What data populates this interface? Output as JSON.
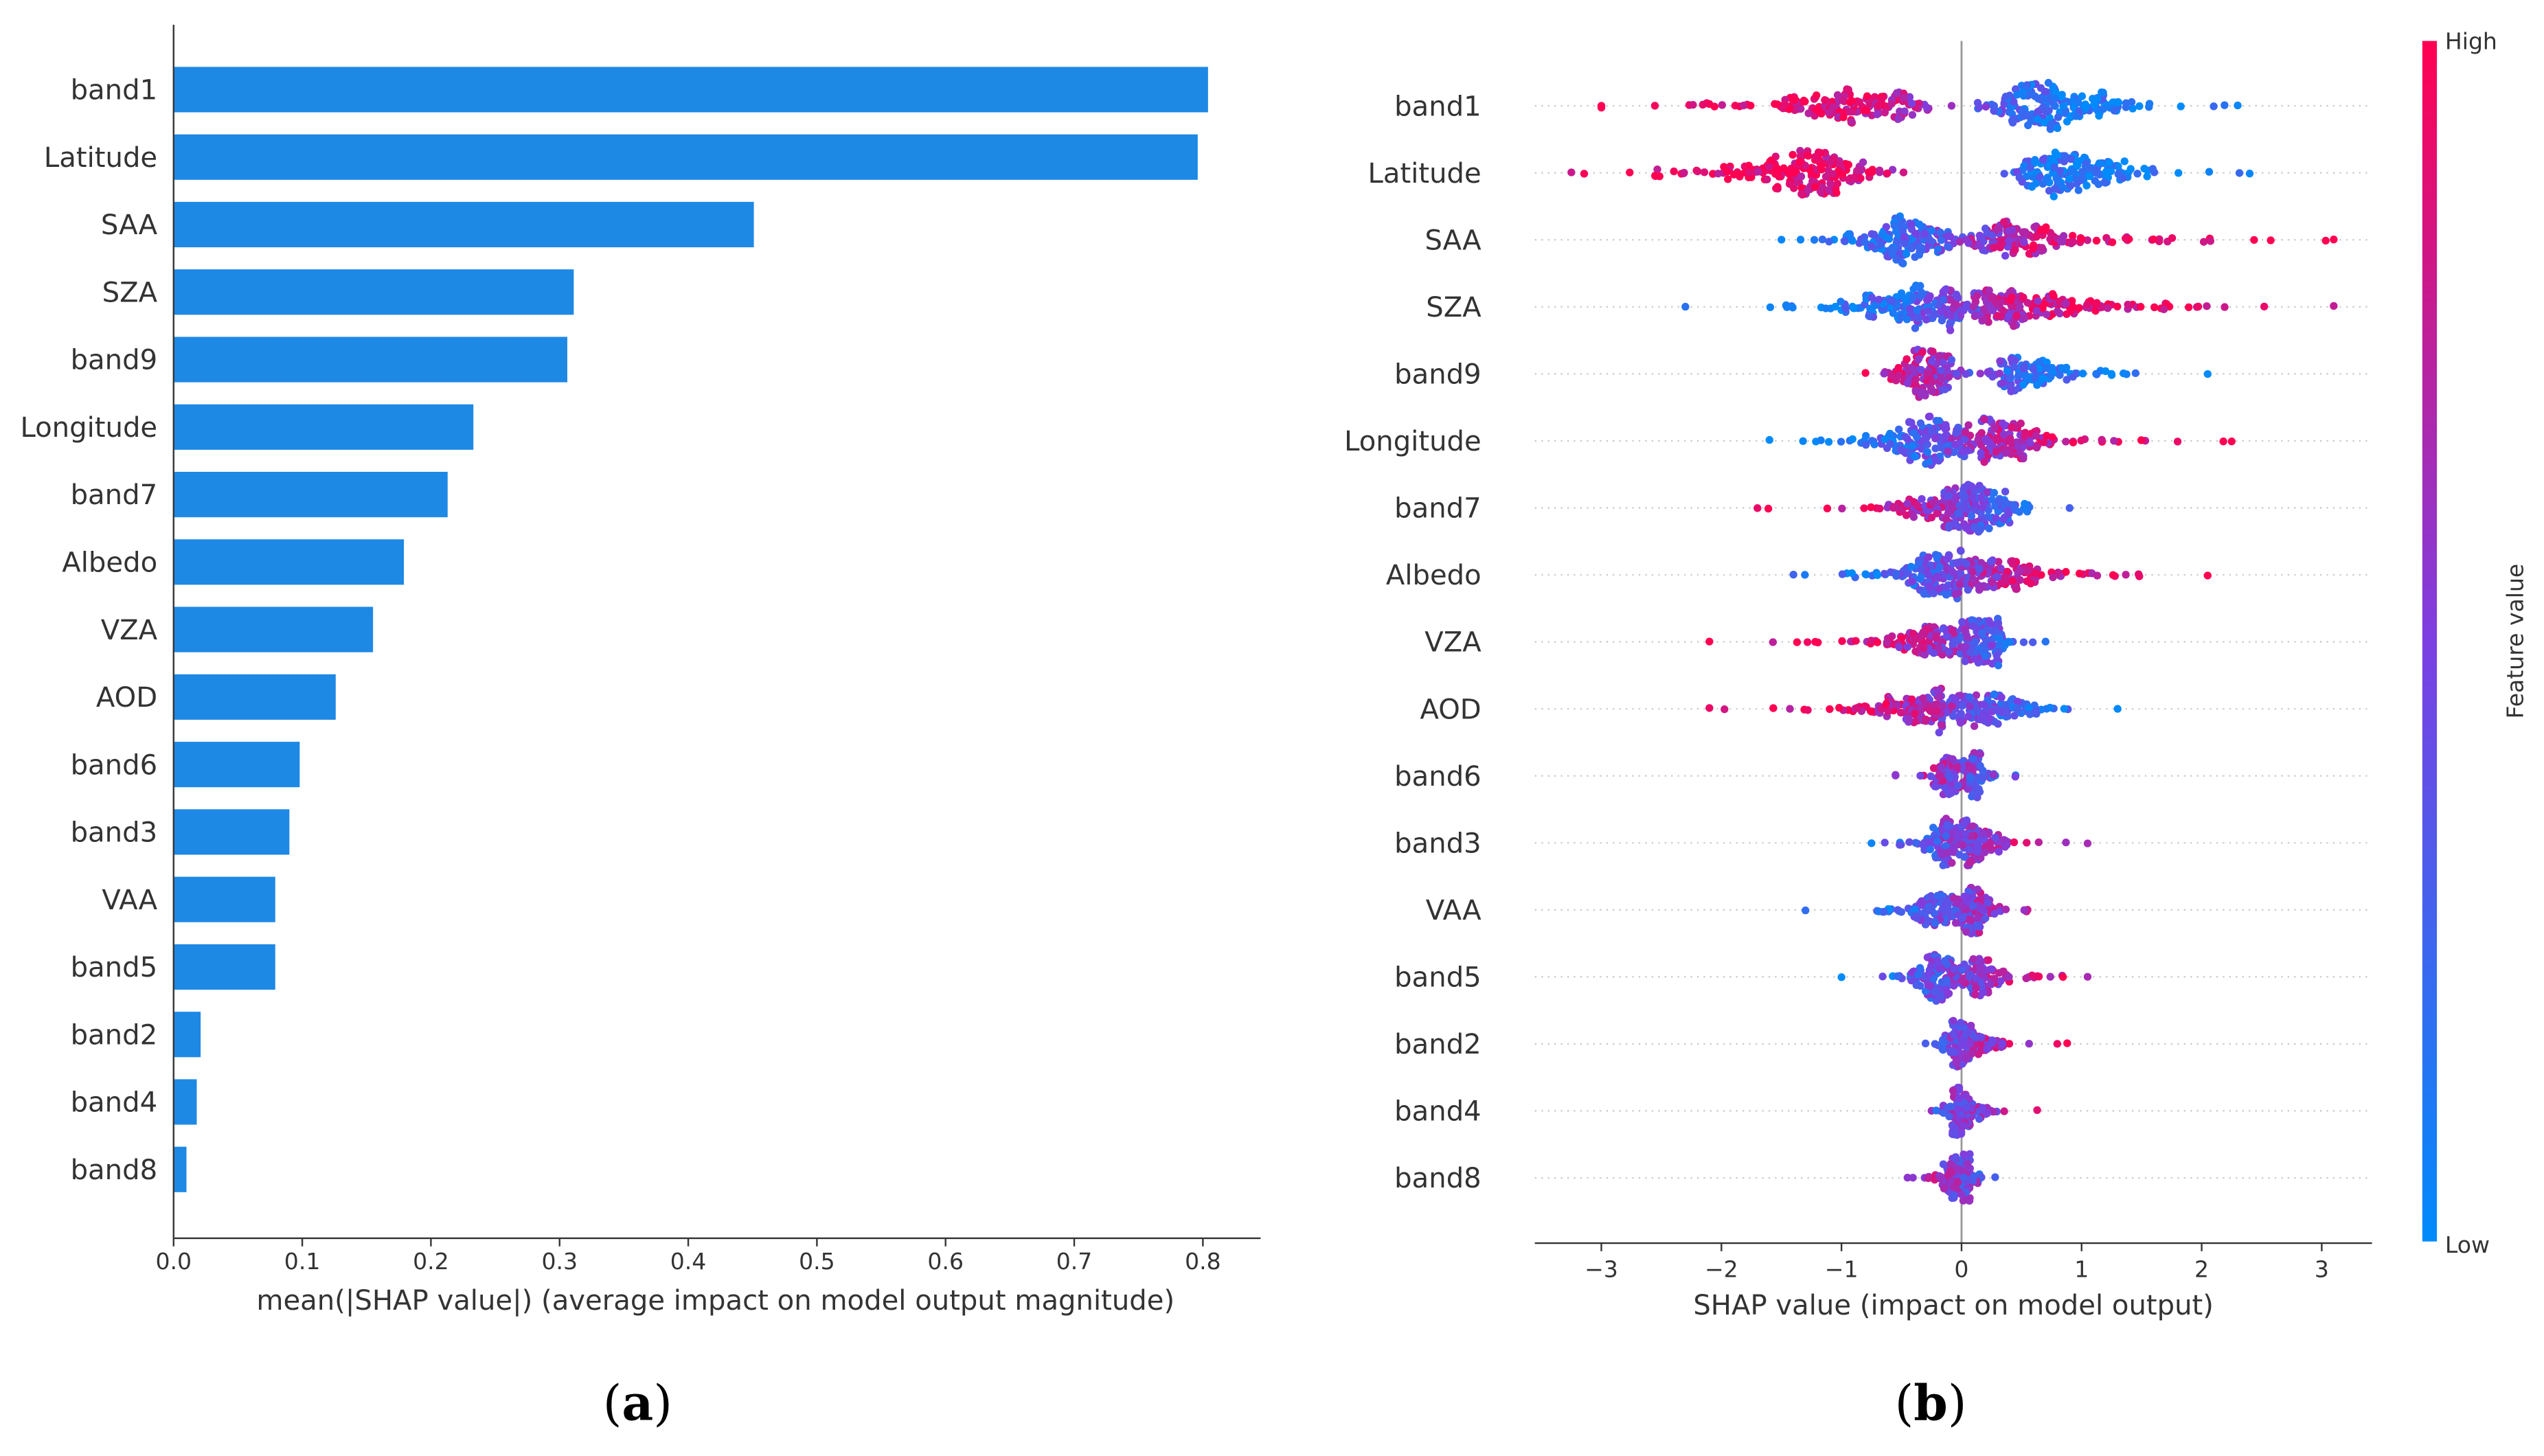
{
  "colors": {
    "bar": "#1E88E5",
    "high": "#FF0052",
    "low": "#008BFB",
    "mid": "#7C3FE2"
  },
  "chart_data": [
    {
      "type": "bar",
      "orientation": "horizontal",
      "caption_letter": "a",
      "categories": [
        "band1",
        "Latitude",
        "SAA",
        "SZA",
        "band9",
        "Longitude",
        "band7",
        "Albedo",
        "VZA",
        "AOD",
        "band6",
        "band3",
        "VAA",
        "band5",
        "band2",
        "band4",
        "band8"
      ],
      "values": [
        0.804,
        0.796,
        0.451,
        0.311,
        0.306,
        0.233,
        0.213,
        0.179,
        0.155,
        0.126,
        0.098,
        0.09,
        0.079,
        0.079,
        0.021,
        0.018,
        0.01
      ],
      "xlabel": "mean(|SHAP value|) (average impact on model output magnitude)",
      "xticks": [
        "0.0",
        "0.1",
        "0.2",
        "0.3",
        "0.4",
        "0.5",
        "0.6",
        "0.7",
        "0.8"
      ],
      "xlim": [
        0,
        0.845
      ]
    },
    {
      "type": "scatter",
      "subtype": "beeswarm",
      "caption_letter": "b",
      "categories": [
        "band1",
        "Latitude",
        "SAA",
        "SZA",
        "band9",
        "Longitude",
        "band7",
        "Albedo",
        "VZA",
        "AOD",
        "band6",
        "band3",
        "VAA",
        "band5",
        "band2",
        "band4",
        "band8"
      ],
      "extent": [
        [
          -3.0,
          2.3
        ],
        [
          -3.25,
          2.4
        ],
        [
          -1.5,
          3.1
        ],
        [
          -2.3,
          3.1
        ],
        [
          -0.8,
          2.05
        ],
        [
          -1.6,
          2.25
        ],
        [
          -1.7,
          0.9
        ],
        [
          -1.4,
          2.05
        ],
        [
          -2.1,
          0.7
        ],
        [
          -2.1,
          1.3
        ],
        [
          -0.55,
          0.45
        ],
        [
          -0.75,
          1.05
        ],
        [
          -1.3,
          0.55
        ],
        [
          -1.0,
          1.05
        ],
        [
          -0.3,
          0.88
        ],
        [
          -0.25,
          0.63
        ],
        [
          -0.45,
          0.28
        ]
      ],
      "lobe_centers": [
        [
          -0.6,
          0.5
        ],
        [
          -1.0,
          0.7
        ],
        [
          -0.3,
          0.1
        ],
        [
          -0.1,
          0.2
        ],
        [
          -0.2,
          0.3
        ],
        [
          -0.1,
          0.1
        ],
        [
          0.05,
          0.1
        ],
        [
          -0.05,
          0.05
        ],
        [
          0.0,
          0.1
        ],
        [
          -0.1,
          0.05
        ],
        [
          -0.05,
          0.05
        ],
        [
          -0.05,
          0.0
        ],
        [
          -0.05,
          0.05
        ],
        [
          -0.1,
          0.05
        ],
        [
          0.0,
          0.02
        ],
        [
          0.0,
          0.02
        ],
        [
          -0.02,
          0.0
        ]
      ],
      "high_value_direction": [
        -1,
        -1,
        1,
        1,
        -1,
        1,
        -1,
        1,
        -1,
        -1,
        -1,
        1,
        1,
        1,
        1,
        1,
        -1
      ],
      "xlabel": "SHAP value (impact on model output)",
      "xticks": [
        -3,
        -2,
        -1,
        0,
        1,
        2,
        3
      ],
      "xtick_labels": [
        "−3",
        "−2",
        "−1",
        "0",
        "1",
        "2",
        "3"
      ],
      "xlim": [
        -3.55,
        3.4
      ],
      "colorbar": {
        "label": "Feature value",
        "high": "High",
        "low": "Low"
      }
    }
  ]
}
